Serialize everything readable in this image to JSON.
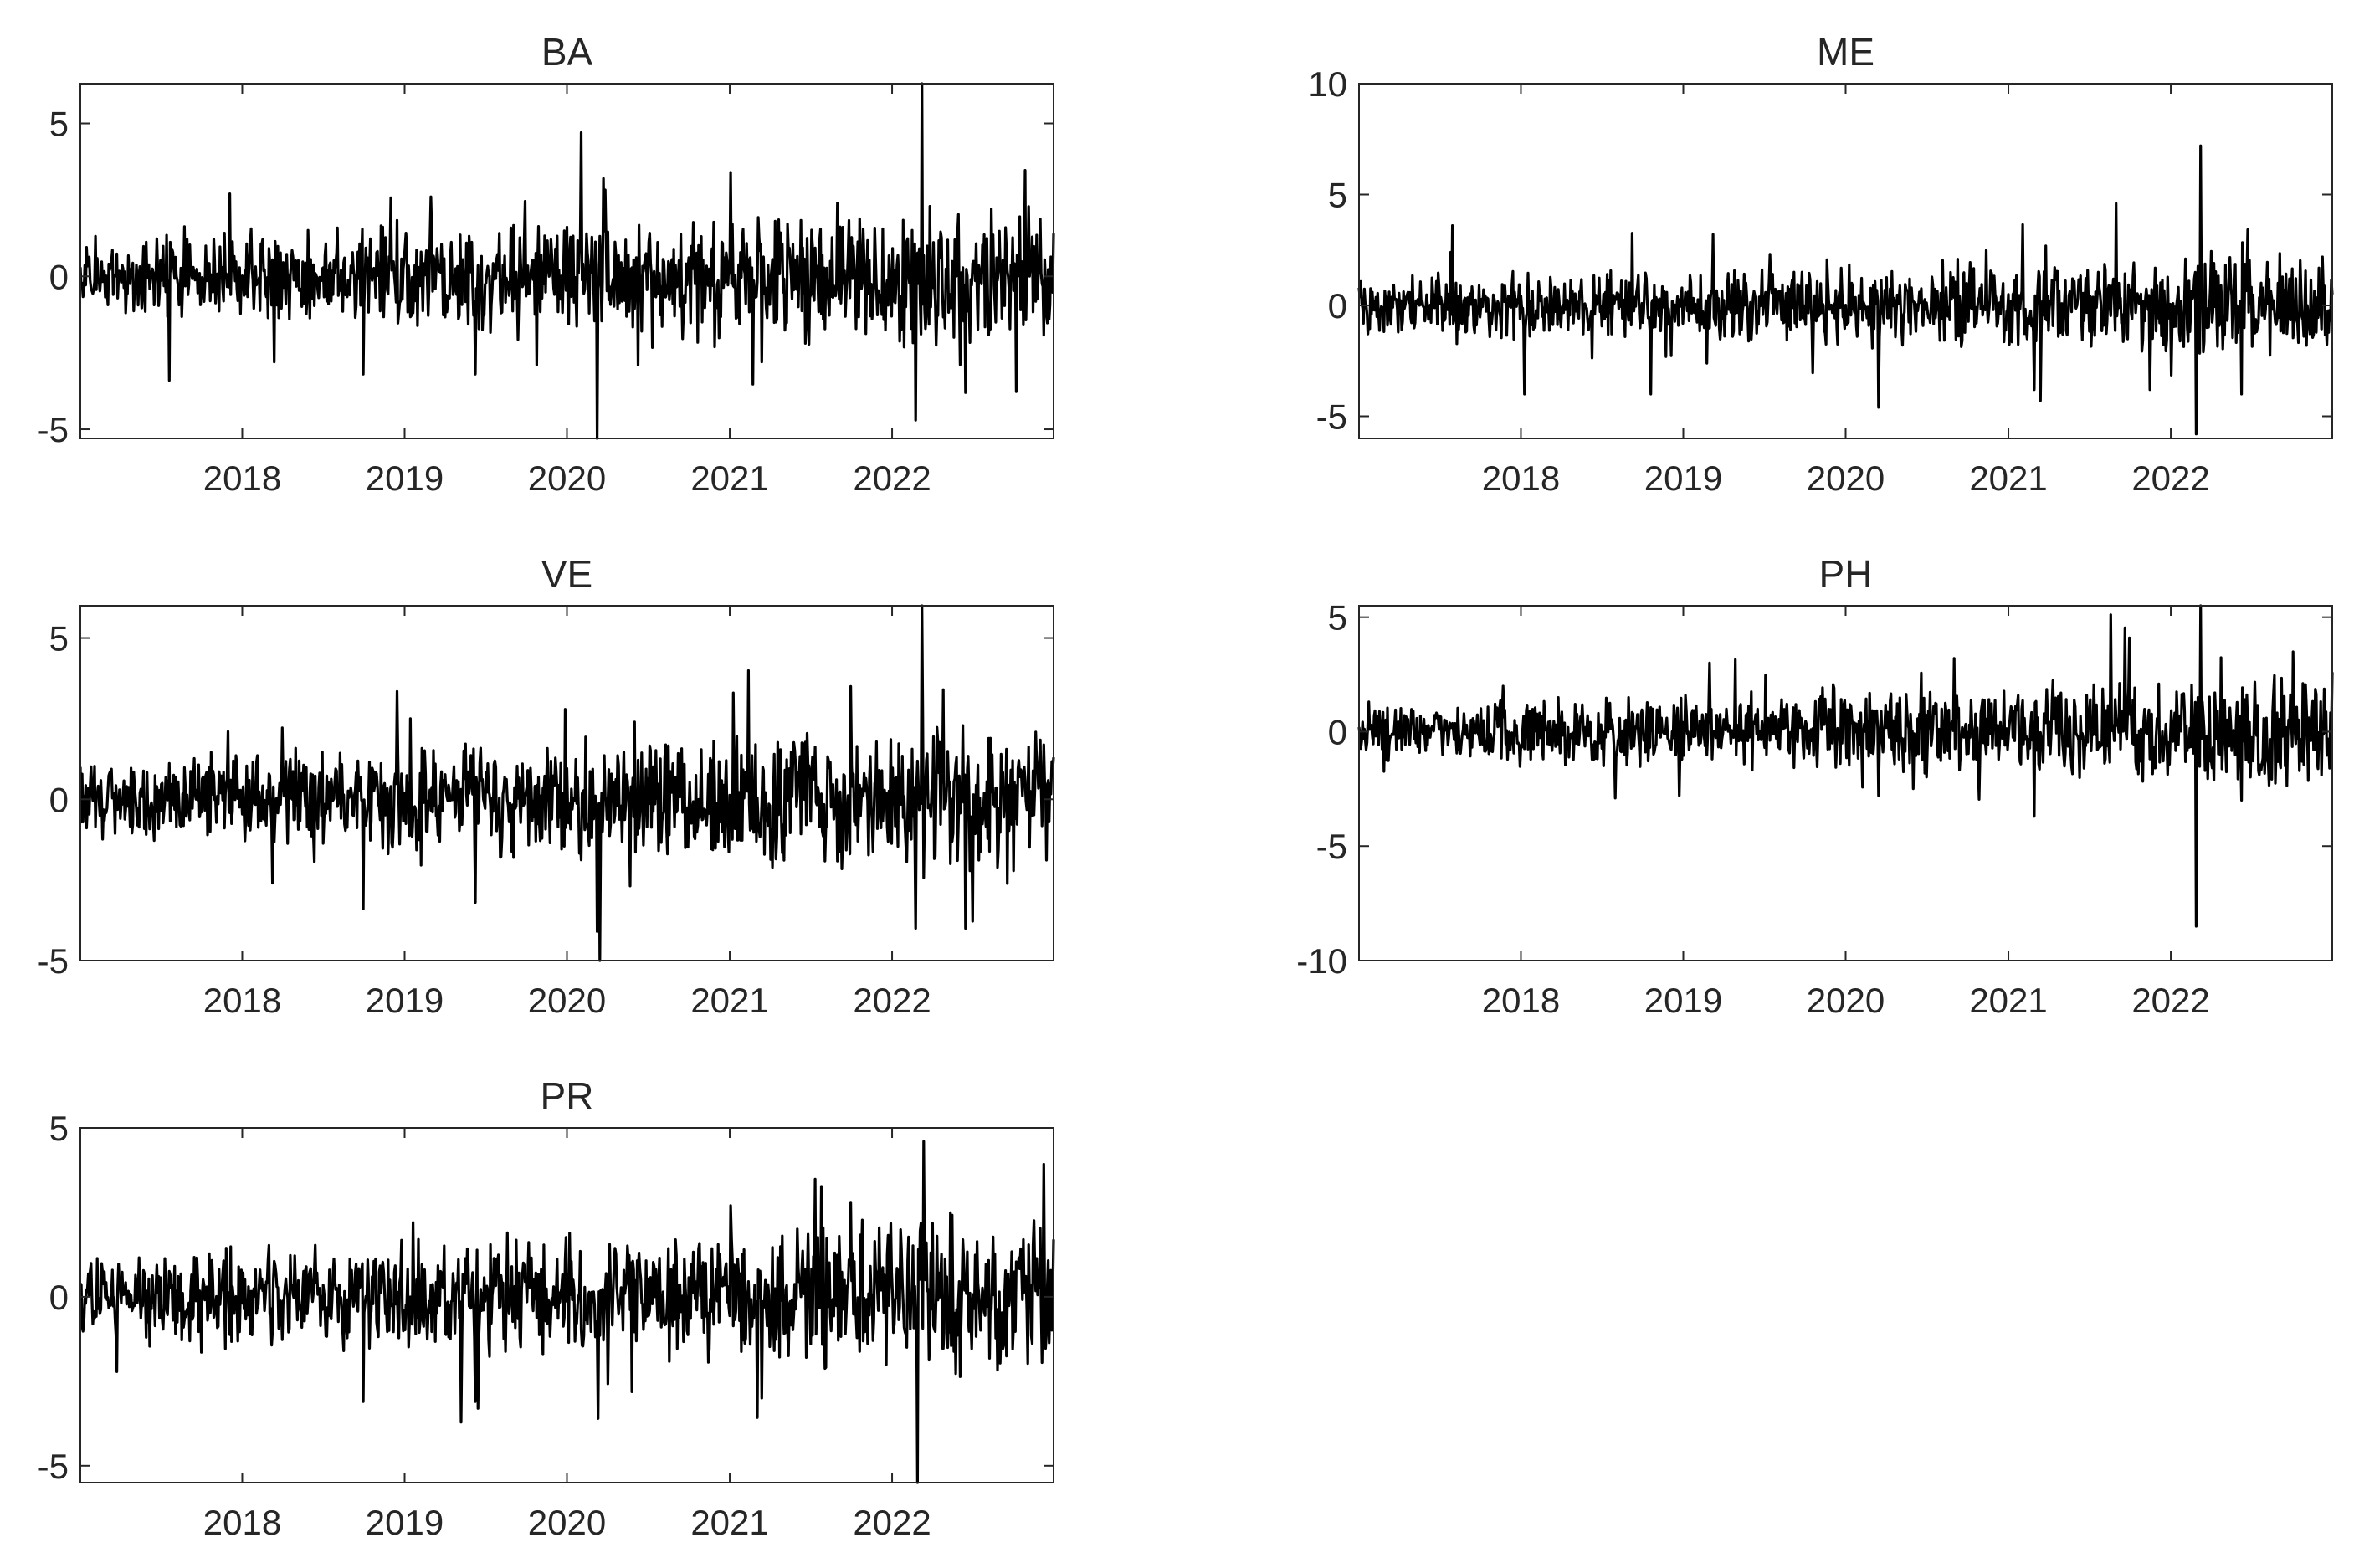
{
  "chart_data": [
    {
      "type": "line",
      "title": "BA",
      "xlabel": "",
      "ylabel": "",
      "x_ticks": [
        "2018",
        "2019",
        "2020",
        "2021",
        "2022"
      ],
      "y_ticks": [
        -5,
        0,
        5
      ],
      "ylim": [
        -5.3,
        6.3
      ],
      "xlim": [
        "2017-01-02",
        "2022-12-30"
      ],
      "grid": false,
      "line_color": "#000000",
      "series": [
        {
          "values": [
            {
              "x": "2017-01-02",
              "y": 0.3
            },
            {
              "x": "2017-07-21",
              "y": -3.4
            },
            {
              "x": "2017-12-05",
              "y": 2.7
            },
            {
              "x": "2018-03-15",
              "y": -2.8
            },
            {
              "x": "2018-10-01",
              "y": -3.2
            },
            {
              "x": "2019-03-01",
              "y": 2.6
            },
            {
              "x": "2019-06-10",
              "y": -3.2
            },
            {
              "x": "2020-02-03",
              "y": 4.7
            },
            {
              "x": "2020-03-09",
              "y": -5.3
            },
            {
              "x": "2020-03-24",
              "y": 3.2
            },
            {
              "x": "2020-06-10",
              "y": -2.9
            },
            {
              "x": "2021-01-04",
              "y": 3.4
            },
            {
              "x": "2021-03-15",
              "y": -2.8
            },
            {
              "x": "2021-09-01",
              "y": 2.4
            },
            {
              "x": "2022-02-24",
              "y": -4.7
            },
            {
              "x": "2022-03-10",
              "y": 6.3
            },
            {
              "x": "2022-06-15",
              "y": -3.8
            },
            {
              "x": "2022-12-30",
              "y": 1.4
            }
          ]
        }
      ]
    },
    {
      "type": "line",
      "title": "ME",
      "xlabel": "",
      "ylabel": "",
      "x_ticks": [
        "2018",
        "2019",
        "2020",
        "2021",
        "2022"
      ],
      "y_ticks": [
        -5,
        0,
        5,
        10
      ],
      "ylim": [
        -6,
        10
      ],
      "xlim": [
        "2017-01-02",
        "2022-12-30"
      ],
      "grid": false,
      "line_color": "#000000",
      "series": [
        {
          "values": [
            {
              "x": "2017-01-02",
              "y": 0.8
            },
            {
              "x": "2017-08-01",
              "y": 3.6
            },
            {
              "x": "2018-01-10",
              "y": -4.0
            },
            {
              "x": "2018-10-20",
              "y": -4.0
            },
            {
              "x": "2019-03-10",
              "y": 3.2
            },
            {
              "x": "2020-03-16",
              "y": -4.6
            },
            {
              "x": "2021-03-01",
              "y": -3.8
            },
            {
              "x": "2021-03-15",
              "y": -4.3
            },
            {
              "x": "2021-09-01",
              "y": 4.6
            },
            {
              "x": "2021-11-15",
              "y": -3.8
            },
            {
              "x": "2022-02-28",
              "y": -5.8
            },
            {
              "x": "2022-03-10",
              "y": 7.2
            },
            {
              "x": "2022-06-10",
              "y": -4.0
            },
            {
              "x": "2022-12-30",
              "y": 0.5
            }
          ]
        }
      ]
    },
    {
      "type": "line",
      "title": "VE",
      "xlabel": "",
      "ylabel": "",
      "x_ticks": [
        "2018",
        "2019",
        "2020",
        "2021",
        "2022"
      ],
      "y_ticks": [
        -5,
        0,
        5
      ],
      "ylim": [
        -5,
        6
      ],
      "xlim": [
        "2017-01-02",
        "2022-12-30"
      ],
      "grid": false,
      "line_color": "#000000",
      "series": [
        {
          "values": [
            {
              "x": "2017-01-02",
              "y": 1.0
            },
            {
              "x": "2017-12-01",
              "y": 2.1
            },
            {
              "x": "2018-03-10",
              "y": -2.6
            },
            {
              "x": "2018-10-01",
              "y": -3.4
            },
            {
              "x": "2019-01-15",
              "y": 2.5
            },
            {
              "x": "2019-06-10",
              "y": -3.2
            },
            {
              "x": "2020-03-09",
              "y": -4.1
            },
            {
              "x": "2020-03-16",
              "y": -5.0
            },
            {
              "x": "2020-06-01",
              "y": 2.4
            },
            {
              "x": "2021-01-10",
              "y": 3.3
            },
            {
              "x": "2021-10-01",
              "y": 3.5
            },
            {
              "x": "2022-02-24",
              "y": -4.0
            },
            {
              "x": "2022-03-10",
              "y": 6.0
            },
            {
              "x": "2022-06-15",
              "y": -4.0
            },
            {
              "x": "2022-12-30",
              "y": 1.3
            }
          ]
        }
      ]
    },
    {
      "type": "line",
      "title": "PH",
      "xlabel": "",
      "ylabel": "",
      "x_ticks": [
        "2018",
        "2019",
        "2020",
        "2021",
        "2022"
      ],
      "y_ticks": [
        -10,
        -5,
        0,
        5
      ],
      "ylim": [
        -10,
        5.5
      ],
      "xlim": [
        "2017-01-02",
        "2022-12-30"
      ],
      "grid": false,
      "line_color": "#000000",
      "series": [
        {
          "values": [
            {
              "x": "2017-01-02",
              "y": 0.2
            },
            {
              "x": "2018-08-01",
              "y": -2.9
            },
            {
              "x": "2019-03-01",
              "y": 3.0
            },
            {
              "x": "2020-03-16",
              "y": -2.8
            },
            {
              "x": "2020-09-01",
              "y": 3.2
            },
            {
              "x": "2021-03-01",
              "y": -3.7
            },
            {
              "x": "2021-08-20",
              "y": 5.1
            },
            {
              "x": "2021-10-01",
              "y": 4.1
            },
            {
              "x": "2022-02-28",
              "y": -8.5
            },
            {
              "x": "2022-03-10",
              "y": 5.5
            },
            {
              "x": "2022-06-10",
              "y": -3.0
            },
            {
              "x": "2022-12-30",
              "y": 2.6
            }
          ]
        }
      ]
    },
    {
      "type": "line",
      "title": "PR",
      "xlabel": "",
      "ylabel": "",
      "x_ticks": [
        "2018",
        "2019",
        "2020",
        "2021",
        "2022"
      ],
      "y_ticks": [
        -5,
        0,
        5
      ],
      "ylim": [
        -5.5,
        5
      ],
      "xlim": [
        "2017-01-02",
        "2022-12-30"
      ],
      "grid": false,
      "line_color": "#000000",
      "series": [
        {
          "values": [
            {
              "x": "2017-01-02",
              "y": 0.4
            },
            {
              "x": "2018-10-01",
              "y": -3.1
            },
            {
              "x": "2019-01-20",
              "y": 2.2
            },
            {
              "x": "2019-06-10",
              "y": -3.1
            },
            {
              "x": "2020-03-12",
              "y": -3.6
            },
            {
              "x": "2021-01-04",
              "y": 2.7
            },
            {
              "x": "2021-03-15",
              "y": -3.0
            },
            {
              "x": "2021-10-01",
              "y": 2.8
            },
            {
              "x": "2022-02-28",
              "y": -5.5
            },
            {
              "x": "2022-03-14",
              "y": 4.6
            },
            {
              "x": "2022-12-30",
              "y": 1.7
            }
          ]
        }
      ]
    }
  ]
}
